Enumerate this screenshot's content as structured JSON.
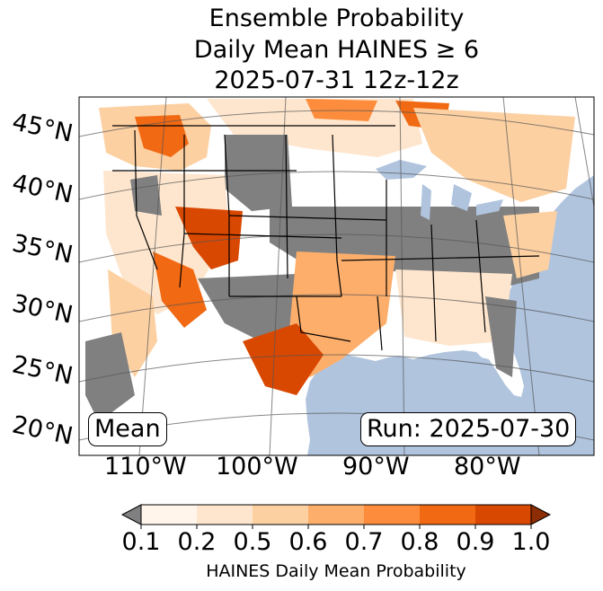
{
  "title": {
    "line1": "Ensemble Probability",
    "line2": "Daily Mean HAINES ≥ 6",
    "line3": "2025-07-31 12z-12z"
  },
  "map": {
    "ocean_color": "#b0c4de",
    "land_color": "#ffffff",
    "lat_labels": [
      "45°N",
      "40°N",
      "35°N",
      "30°N",
      "25°N",
      "20°N"
    ],
    "lon_labels": [
      "110°W",
      "100°W",
      "90°W",
      "80°W"
    ],
    "stat_label": "Mean",
    "run_label": "Run: 2025-07-30"
  },
  "colorbar": {
    "label": "HAINES Daily Mean Probability",
    "ticks": [
      "0.1",
      "0.2",
      "0.5",
      "0.6",
      "0.7",
      "0.8",
      "0.9",
      "1.0"
    ],
    "under_color": "#808080",
    "colors": [
      "#fff5eb",
      "#fee6ce",
      "#fdd0a2",
      "#fdae6b",
      "#fd8d3c",
      "#f16913",
      "#d94801"
    ],
    "over_color": "#8c2d04"
  }
}
